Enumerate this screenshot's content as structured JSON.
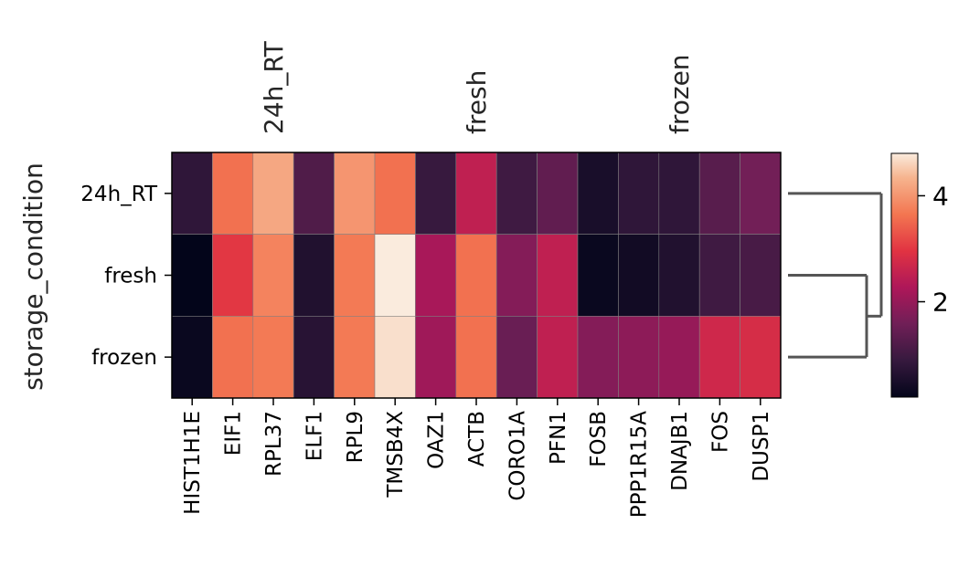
{
  "chart_data": {
    "type": "heatmap",
    "title": "",
    "ylabel": "storage_condition",
    "xlabel": "",
    "rows": [
      "24h_RT",
      "fresh",
      "frozen"
    ],
    "columns": [
      "HIST1H1E",
      "EIF1",
      "RPL37",
      "ELF1",
      "RPL9",
      "TMSB4X",
      "OAZ1",
      "ACTB",
      "CORO1A",
      "PFN1",
      "FOSB",
      "PPP1R15A",
      "DNAJB1",
      "FOS",
      "DUSP1"
    ],
    "group_labels": [
      "24h_RT",
      "fresh",
      "frozen"
    ],
    "values": [
      [
        0.8,
        3.6,
        4.2,
        1.2,
        4.0,
        3.6,
        0.9,
        2.5,
        1.0,
        1.4,
        0.5,
        0.8,
        0.8,
        1.3,
        1.6
      ],
      [
        0.2,
        3.0,
        3.8,
        0.6,
        3.7,
        4.8,
        2.2,
        3.6,
        1.8,
        2.5,
        0.3,
        0.4,
        0.6,
        1.0,
        1.1
      ],
      [
        0.3,
        3.6,
        3.7,
        0.7,
        3.7,
        4.7,
        2.1,
        3.6,
        1.5,
        2.5,
        1.8,
        1.9,
        2.0,
        2.7,
        2.8
      ]
    ],
    "colormap": "rocket",
    "color_range": [
      0.2,
      4.8
    ],
    "colorbar_ticks": [
      2,
      4
    ],
    "dendrogram": "rows fresh and frozen join first; 24h_RT joins at top"
  }
}
